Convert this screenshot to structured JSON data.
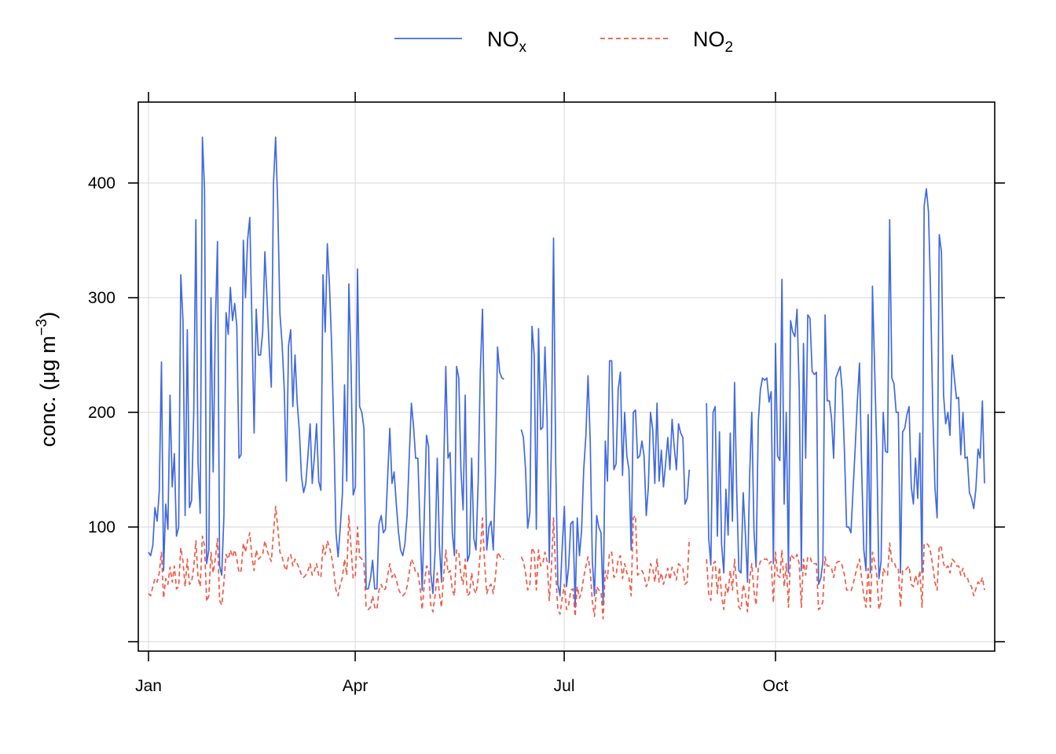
{
  "chart_data": {
    "type": "line",
    "title": "",
    "ylabel": "conc. (μg m",
    "ylabel_superscript": "−3",
    "ylabel_suffix": ")",
    "xlabel": "",
    "x_axis": {
      "type": "date",
      "range": [
        "1998-01-01",
        "1998-12-31"
      ]
    },
    "ylim": [
      0,
      460
    ],
    "yticks": [
      100,
      200,
      300,
      400
    ],
    "xticks": [
      {
        "date": "1998-01-01",
        "label": "Jan"
      },
      {
        "date": "1998-04-01",
        "label": "Apr"
      },
      {
        "date": "1998-07-01",
        "label": "Jul"
      },
      {
        "date": "1998-10-01",
        "label": "Oct"
      }
    ],
    "grid": true,
    "legend": {
      "placement": "top",
      "entries": [
        "NOx",
        "NO2"
      ]
    },
    "series": [
      {
        "name": "NOx",
        "name_main": "NO",
        "name_sub": "x",
        "color": "#4169E1",
        "dash": "solid",
        "start": "1998-01-01",
        "values": [
          78,
          75,
          84,
          117,
          105,
          131,
          244,
          62,
          120,
          98,
          215,
          135,
          164,
          92,
          100,
          320,
          280,
          110,
          272,
          117,
          123,
          200,
          368,
          155,
          112,
          440,
          395,
          68,
          80,
          300,
          148,
          275,
          349,
          66,
          58,
          110,
          287,
          268,
          309,
          280,
          295,
          275,
          160,
          163,
          350,
          300,
          350,
          370,
          280,
          182,
          290,
          250,
          250,
          270,
          340,
          300,
          256,
          222,
          400,
          440,
          380,
          286,
          260,
          220,
          140,
          258,
          272,
          205,
          250,
          209,
          184,
          144,
          130,
          138,
          162,
          190,
          138,
          162,
          190,
          140,
          132,
          320,
          270,
          347,
          310,
          258,
          185,
          95,
          74,
          100,
          129,
          224,
          140,
          312,
          240,
          128,
          135,
          325,
          205,
          200,
          186,
          46,
          46,
          55,
          71,
          46,
          46,
          103,
          110,
          95,
          98,
          144,
          186,
          138,
          148,
          120,
          96,
          80,
          75,
          85,
          110,
          160,
          208,
          188,
          160,
          160,
          103,
          45,
          110,
          180,
          170,
          60,
          42,
          78,
          160,
          85,
          52,
          150,
          240,
          160,
          165,
          95,
          75,
          240,
          230,
          150,
          115,
          215,
          70,
          76,
          160,
          90,
          80,
          140,
          235,
          290,
          180,
          80,
          100,
          105,
          80,
          145,
          257,
          235,
          230,
          229,
          null,
          null,
          null,
          null,
          null,
          null,
          null,
          185,
          178,
          150,
          99,
          113,
          275,
          250,
          98,
          273,
          185,
          187,
          257,
          195,
          69,
          175,
          352,
          155,
          50,
          40,
          82,
          118,
          48,
          65,
          103,
          105,
          30,
          108,
          75,
          97,
          150,
          180,
          232,
          175,
          70,
          40,
          110,
          100,
          95,
          32,
          175,
          140,
          245,
          245,
          150,
          155,
          220,
          235,
          145,
          200,
          162,
          150,
          80,
          200,
          202,
          160,
          162,
          175,
          162,
          110,
          135,
          200,
          185,
          138,
          208,
          140,
          167,
          135,
          155,
          178,
          150,
          194,
          170,
          150,
          190,
          182,
          178,
          120,
          125,
          150,
          null,
          null,
          null,
          null,
          null,
          null,
          null,
          208,
          90,
          67,
          200,
          205,
          92,
          183,
          85,
          60,
          133,
          93,
          182,
          105,
          226,
          132,
          62,
          60,
          130,
          95,
          52,
          145,
          200,
          97,
          65,
          192,
          220,
          230,
          228,
          230,
          209,
          218,
          68,
          260,
          162,
          158,
          316,
          120,
          200,
          60,
          280,
          270,
          266,
          290,
          220,
          62,
          260,
          160,
          285,
          282,
          236,
          233,
          235,
          50,
          55,
          70,
          285,
          210,
          210,
          195,
          160,
          230,
          235,
          240,
          218,
          165,
          100,
          100,
          95,
          132,
          170,
          210,
          243,
          150,
          80,
          62,
          198,
          60,
          310,
          240,
          168,
          55,
          70,
          200,
          166,
          165,
          368,
          230,
          225,
          200,
          200,
          60,
          183,
          186,
          198,
          205,
          135,
          120,
          160,
          125,
          182,
          60,
          380,
          395,
          375,
          303,
          200,
          135,
          108,
          355,
          340,
          215,
          190,
          200,
          180,
          250,
          230,
          212,
          213,
          163,
          200,
          160,
          161,
          130,
          125,
          116,
          133,
          168,
          160,
          210,
          138
        ]
      },
      {
        "name": "NO2",
        "name_main": "NO",
        "name_sub": "2",
        "color": "#F05A47",
        "dash": "dashed",
        "start": "1998-01-01",
        "values": [
          42,
          40,
          48,
          55,
          52,
          60,
          78,
          38,
          55,
          50,
          65,
          52,
          66,
          46,
          48,
          82,
          70,
          48,
          72,
          50,
          52,
          65,
          88,
          56,
          48,
          92,
          84,
          35,
          40,
          78,
          60,
          72,
          90,
          36,
          32,
          52,
          76,
          72,
          80,
          74,
          80,
          72,
          60,
          62,
          86,
          78,
          88,
          95,
          74,
          62,
          80,
          72,
          74,
          76,
          88,
          80,
          74,
          70,
          95,
          118,
          100,
          78,
          74,
          66,
          62,
          74,
          76,
          66,
          72,
          68,
          64,
          58,
          56,
          58,
          62,
          68,
          58,
          62,
          68,
          58,
          56,
          84,
          76,
          88,
          82,
          74,
          62,
          45,
          40,
          50,
          56,
          72,
          58,
          110,
          82,
          55,
          58,
          100,
          74,
          72,
          68,
          30,
          28,
          30,
          40,
          30,
          28,
          45,
          50,
          45,
          46,
          58,
          68,
          56,
          60,
          54,
          46,
          42,
          40,
          42,
          48,
          60,
          72,
          68,
          60,
          60,
          48,
          28,
          50,
          66,
          64,
          32,
          26,
          40,
          60,
          42,
          30,
          58,
          80,
          60,
          62,
          45,
          40,
          80,
          78,
          58,
          50,
          72,
          40,
          42,
          60,
          46,
          42,
          55,
          78,
          108,
          68,
          42,
          48,
          50,
          42,
          56,
          78,
          75,
          72,
          72,
          null,
          null,
          null,
          null,
          null,
          null,
          null,
          74,
          70,
          60,
          45,
          50,
          82,
          78,
          45,
          80,
          66,
          68,
          78,
          70,
          36,
          64,
          108,
          60,
          28,
          24,
          38,
          50,
          28,
          32,
          45,
          46,
          22,
          48,
          38,
          44,
          56,
          66,
          74,
          62,
          35,
          22,
          48,
          45,
          44,
          20,
          62,
          55,
          78,
          78,
          56,
          58,
          72,
          75,
          55,
          68,
          60,
          56,
          40,
          108,
          110,
          58,
          60,
          62,
          58,
          48,
          52,
          68,
          64,
          52,
          72,
          52,
          60,
          50,
          56,
          64,
          54,
          65,
          60,
          54,
          68,
          66,
          64,
          50,
          52,
          90,
          null,
          null,
          null,
          null,
          null,
          null,
          null,
          72,
          42,
          36,
          68,
          70,
          42,
          65,
          40,
          28,
          50,
          42,
          62,
          45,
          72,
          50,
          30,
          28,
          50,
          42,
          26,
          55,
          68,
          44,
          32,
          64,
          70,
          72,
          72,
          72,
          68,
          70,
          34,
          78,
          58,
          56,
          80,
          48,
          68,
          30,
          76,
          74,
          72,
          76,
          68,
          30,
          72,
          58,
          74,
          74,
          68,
          68,
          68,
          28,
          30,
          35,
          74,
          66,
          66,
          64,
          56,
          68,
          70,
          70,
          66,
          58,
          45,
          45,
          44,
          50,
          58,
          66,
          72,
          55,
          40,
          30,
          64,
          30,
          78,
          70,
          58,
          28,
          35,
          64,
          60,
          58,
          86,
          70,
          70,
          64,
          64,
          30,
          62,
          62,
          64,
          66,
          50,
          48,
          58,
          50,
          62,
          30,
          85,
          86,
          84,
          78,
          66,
          52,
          45,
          84,
          82,
          68,
          64,
          66,
          60,
          72,
          70,
          66,
          66,
          58,
          64,
          56,
          56,
          50,
          48,
          40,
          46,
          52,
          50,
          56,
          45
        ]
      }
    ]
  }
}
